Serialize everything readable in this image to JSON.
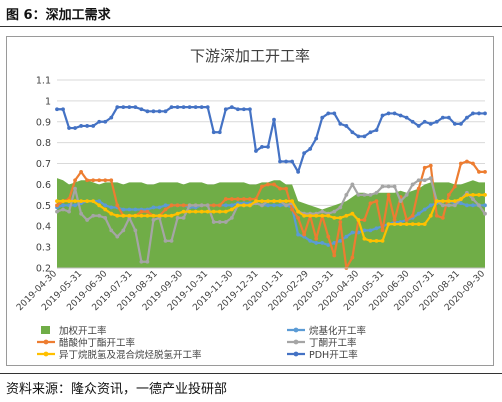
{
  "figure_caption": "图 6：深加工需求",
  "source_note": "资料来源：隆众资讯，一德产业投研部",
  "colors": {
    "area": "#70ad47",
    "alkylation": "#5b9bd5",
    "mek": "#ed7d31",
    "butanone": "#a5a5a5",
    "isomer": "#ffc000",
    "pdh": "#4472c4"
  },
  "chart_data": {
    "type": "line",
    "title": "下游深加工开工率",
    "xlabel": "",
    "ylabel": "",
    "ylim": [
      0.2,
      1.1
    ],
    "yticks": [
      0.2,
      0.3,
      0.4,
      0.5,
      0.6,
      0.7,
      0.8,
      0.9,
      1,
      1.1
    ],
    "x_tick_labels": [
      "2019-04-30",
      "2019-05-31",
      "2019-06-30",
      "2019-07-31",
      "2019-08-31",
      "2019-09-30",
      "2019-10-31",
      "2019-11-30",
      "2019-12-31",
      "2020-01-31",
      "2020-02-29",
      "2020-03-31",
      "2020-04-30",
      "2020-05-31",
      "2020-06-30",
      "2020-07-31",
      "2020-08-31",
      "2020-09-30"
    ],
    "grid": true,
    "legend_position": "bottom",
    "series": [
      {
        "name": "加权开工率",
        "kind": "area",
        "color_key": "area",
        "values": [
          0.63,
          0.62,
          0.6,
          0.61,
          0.62,
          0.62,
          0.61,
          0.6,
          0.61,
          0.61,
          0.61,
          0.6,
          0.61,
          0.61,
          0.61,
          0.6,
          0.6,
          0.61,
          0.61,
          0.61,
          0.61,
          0.6,
          0.61,
          0.61,
          0.61,
          0.6,
          0.6,
          0.61,
          0.61,
          0.61,
          0.61,
          0.61,
          0.6,
          0.6,
          0.61,
          0.61,
          0.62,
          0.62,
          0.6,
          0.6,
          0.52,
          0.51,
          0.5,
          0.49,
          0.48,
          0.49,
          0.5,
          0.51,
          0.52,
          0.54,
          0.56,
          0.56,
          0.55,
          0.56,
          0.56,
          0.56,
          0.56,
          0.57,
          0.56,
          0.57,
          0.58,
          0.6,
          0.61,
          0.61,
          0.61,
          0.61,
          0.6,
          0.6,
          0.61,
          0.62,
          0.61,
          0.61
        ]
      },
      {
        "name": "烷基化开工率",
        "kind": "line",
        "color_key": "alkylation",
        "values": [
          0.49,
          0.5,
          0.5,
          0.5,
          0.51,
          0.52,
          0.52,
          0.52,
          0.5,
          0.49,
          0.49,
          0.48,
          0.48,
          0.48,
          0.48,
          0.48,
          0.49,
          0.49,
          0.5,
          0.5,
          0.5,
          0.5,
          0.49,
          0.49,
          0.5,
          0.5,
          0.5,
          0.5,
          0.5,
          0.5,
          0.51,
          0.51,
          0.51,
          0.51,
          0.5,
          0.5,
          0.5,
          0.5,
          0.5,
          0.49,
          0.36,
          0.35,
          0.33,
          0.32,
          0.32,
          0.31,
          0.32,
          0.33,
          0.35,
          0.37,
          0.37,
          0.38,
          0.38,
          0.39,
          0.4,
          0.41,
          0.42,
          0.42,
          0.43,
          0.44,
          0.46,
          0.48,
          0.5,
          0.51,
          0.52,
          0.52,
          0.51,
          0.51,
          0.5,
          0.5,
          0.5,
          0.5
        ]
      },
      {
        "name": "醋酸仲丁酯开工率",
        "kind": "line",
        "color_key": "mek",
        "values": [
          0.5,
          0.52,
          0.53,
          0.62,
          0.66,
          0.62,
          0.62,
          0.62,
          0.62,
          0.62,
          0.5,
          0.45,
          0.45,
          0.45,
          0.47,
          0.47,
          0.45,
          0.45,
          0.48,
          0.5,
          0.5,
          0.5,
          0.5,
          0.5,
          0.5,
          0.5,
          0.5,
          0.5,
          0.53,
          0.53,
          0.53,
          0.53,
          0.53,
          0.53,
          0.59,
          0.6,
          0.6,
          0.58,
          0.58,
          0.48,
          0.44,
          0.36,
          0.45,
          0.34,
          0.45,
          0.35,
          0.26,
          0.42,
          0.2,
          0.25,
          0.43,
          0.43,
          0.51,
          0.52,
          0.38,
          0.55,
          0.43,
          0.54,
          0.43,
          0.45,
          0.58,
          0.68,
          0.69,
          0.45,
          0.44,
          0.55,
          0.59,
          0.7,
          0.71,
          0.7,
          0.66,
          0.66
        ]
      },
      {
        "name": "丁酮开工率",
        "kind": "line",
        "color_key": "butanone",
        "values": [
          0.47,
          0.48,
          0.47,
          0.58,
          0.46,
          0.43,
          0.45,
          0.45,
          0.44,
          0.38,
          0.35,
          0.38,
          0.44,
          0.38,
          0.23,
          0.23,
          0.43,
          0.44,
          0.33,
          0.33,
          0.44,
          0.44,
          0.5,
          0.5,
          0.5,
          0.5,
          0.42,
          0.42,
          0.42,
          0.44,
          0.5,
          0.5,
          0.5,
          0.51,
          0.5,
          0.52,
          0.52,
          0.52,
          0.5,
          0.51,
          0.47,
          0.46,
          0.46,
          0.46,
          0.47,
          0.46,
          0.47,
          0.49,
          0.55,
          0.6,
          0.55,
          0.55,
          0.55,
          0.56,
          0.59,
          0.59,
          0.59,
          0.52,
          0.55,
          0.6,
          0.62,
          0.62,
          0.63,
          0.52,
          0.5,
          0.5,
          0.5,
          0.53,
          0.56,
          0.53,
          0.5,
          0.46
        ]
      },
      {
        "name": "异丁烷脱氢及混合烷烃脱氢开工率",
        "kind": "line",
        "color_key": "isomer",
        "values": [
          0.52,
          0.52,
          0.52,
          0.52,
          0.52,
          0.52,
          0.52,
          0.5,
          0.48,
          0.46,
          0.45,
          0.45,
          0.45,
          0.45,
          0.45,
          0.45,
          0.45,
          0.45,
          0.45,
          0.45,
          0.46,
          0.47,
          0.47,
          0.47,
          0.47,
          0.47,
          0.47,
          0.47,
          0.47,
          0.48,
          0.5,
          0.5,
          0.5,
          0.52,
          0.52,
          0.52,
          0.52,
          0.52,
          0.52,
          0.52,
          0.47,
          0.45,
          0.45,
          0.45,
          0.45,
          0.45,
          0.44,
          0.44,
          0.45,
          0.46,
          0.43,
          0.34,
          0.33,
          0.33,
          0.33,
          0.41,
          0.41,
          0.41,
          0.41,
          0.41,
          0.41,
          0.41,
          0.45,
          0.52,
          0.52,
          0.52,
          0.52,
          0.53,
          0.55,
          0.55,
          0.55,
          0.55
        ]
      },
      {
        "name": "PDH开工率",
        "kind": "line",
        "color_key": "pdh",
        "values": [
          0.96,
          0.96,
          0.87,
          0.87,
          0.88,
          0.88,
          0.88,
          0.9,
          0.9,
          0.92,
          0.97,
          0.97,
          0.97,
          0.97,
          0.96,
          0.95,
          0.95,
          0.95,
          0.95,
          0.97,
          0.97,
          0.97,
          0.97,
          0.97,
          0.97,
          0.97,
          0.85,
          0.85,
          0.96,
          0.97,
          0.96,
          0.96,
          0.96,
          0.76,
          0.78,
          0.78,
          0.91,
          0.71,
          0.71,
          0.71,
          0.66,
          0.75,
          0.77,
          0.82,
          0.92,
          0.94,
          0.94,
          0.89,
          0.88,
          0.85,
          0.83,
          0.83,
          0.85,
          0.86,
          0.93,
          0.94,
          0.94,
          0.93,
          0.92,
          0.9,
          0.88,
          0.9,
          0.89,
          0.9,
          0.92,
          0.92,
          0.89,
          0.89,
          0.92,
          0.94,
          0.94,
          0.94
        ]
      }
    ]
  }
}
